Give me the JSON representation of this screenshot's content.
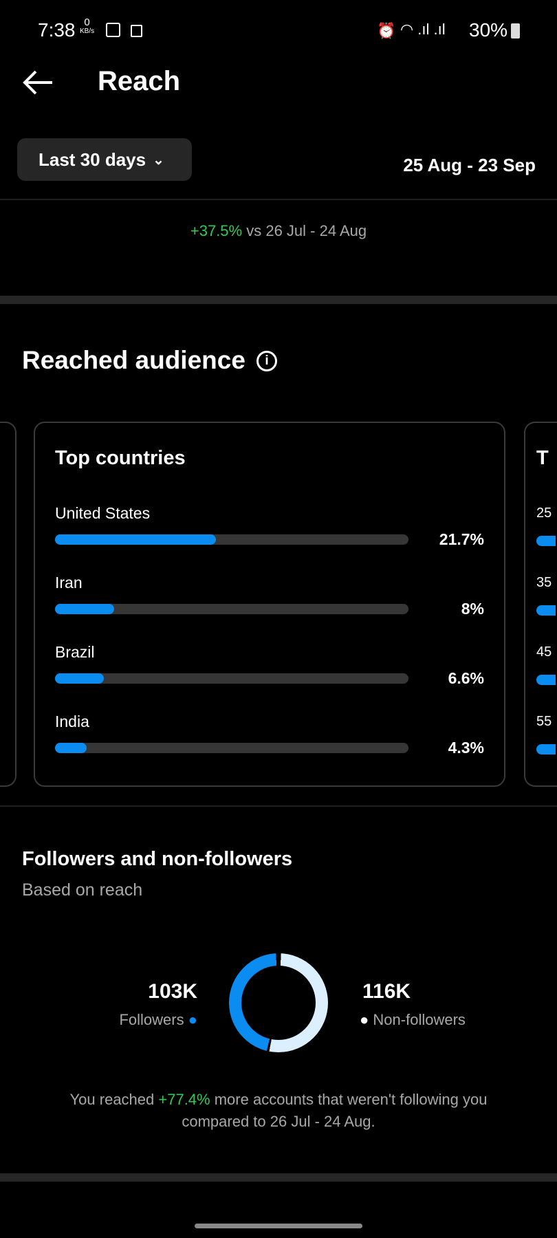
{
  "status_bar": {
    "time": "7:38",
    "net_speed": "0",
    "net_unit": "KB/s",
    "battery": "30%"
  },
  "header": {
    "title": "Reach"
  },
  "filter": {
    "range_label": "Last 30 days",
    "date_range": "25 Aug - 23 Sep"
  },
  "comparison": {
    "change": "+37.5%",
    "text": "vs 26 Jul - 24 Aug"
  },
  "reached_audience": {
    "title": "Reached audience",
    "top_countries": {
      "title": "Top countries",
      "items": [
        {
          "name": "United States",
          "value": "21.7%",
          "fraction": 0.217
        },
        {
          "name": "Iran",
          "value": "8%",
          "fraction": 0.08
        },
        {
          "name": "Brazil",
          "value": "6.6%",
          "fraction": 0.066
        },
        {
          "name": "India",
          "value": "4.3%",
          "fraction": 0.043
        }
      ]
    },
    "next_card": {
      "title": "T",
      "rows": [
        "25",
        "35",
        "45",
        "55"
      ]
    }
  },
  "followers": {
    "title": "Followers and non-followers",
    "subtitle": "Based on reach",
    "followers_value": "103K",
    "followers_label": "Followers",
    "non_followers_value": "116K",
    "non_followers_label": "Non-followers",
    "followers_fraction": 0.47,
    "note_pre": "You reached ",
    "note_change": "+77.4%",
    "note_post": " more accounts that weren't following you",
    "note_line2": "compared to 26 Jul - 24 Aug.",
    "colors": {
      "followers": "#0a8cf0",
      "non_followers": "#dcefff"
    }
  }
}
